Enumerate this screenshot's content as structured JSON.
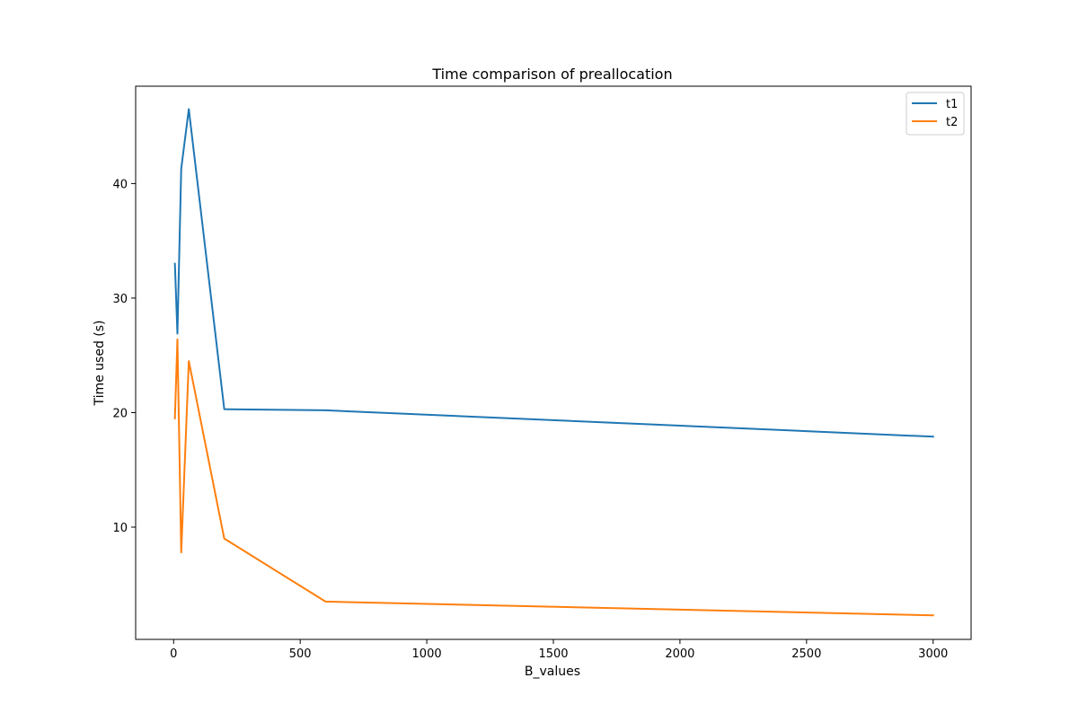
{
  "chart_data": {
    "type": "line",
    "title": "Time comparison of preallocation",
    "xlabel": "B_values",
    "ylabel": "Time used (s)",
    "xlim": [
      -150,
      3150
    ],
    "ylim": [
      0.2,
      48.5
    ],
    "x_ticks": [
      0,
      500,
      1000,
      1500,
      2000,
      2500,
      3000
    ],
    "y_ticks": [
      10,
      20,
      30,
      40
    ],
    "grid": false,
    "legend_position": "top-right",
    "x": [
      5,
      15,
      30,
      60,
      200,
      600,
      3000
    ],
    "series": [
      {
        "name": "t1",
        "color": "#1f77b4",
        "values": [
          33.0,
          26.9,
          41.3,
          46.5,
          20.3,
          20.2,
          17.9
        ]
      },
      {
        "name": "t2",
        "color": "#ff7f0e",
        "values": [
          19.5,
          26.4,
          7.8,
          24.5,
          9.0,
          3.5,
          2.3
        ]
      }
    ]
  }
}
